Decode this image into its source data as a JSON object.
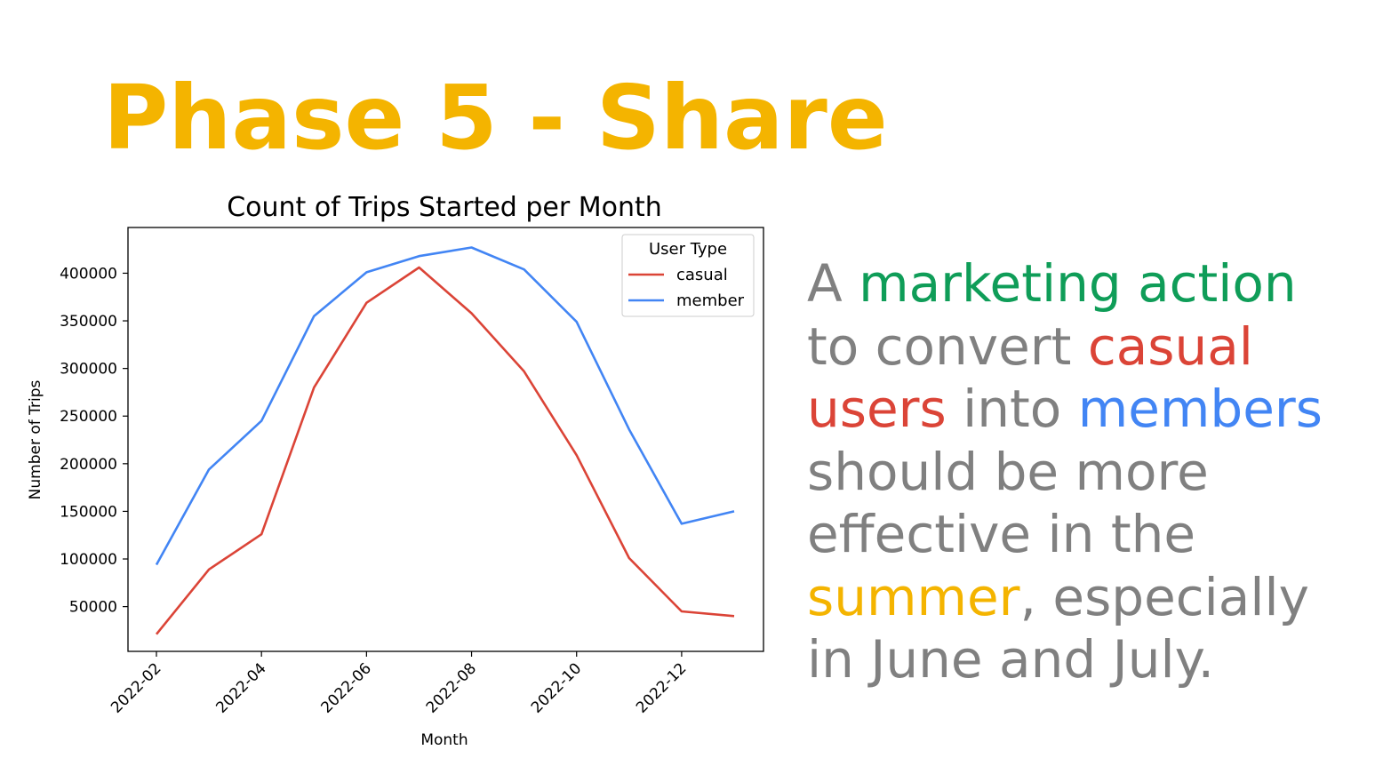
{
  "slide": {
    "title": "Phase 5 - Share"
  },
  "colors": {
    "title": "#f4b400",
    "body_text": "#808080",
    "green": "#0f9d58",
    "red": "#db4437",
    "blue": "#4285f4",
    "yellow": "#f4b400"
  },
  "chart_data": {
    "type": "line",
    "title": "Count of Trips Started per Month",
    "xlabel": "Month",
    "ylabel": "Number of Trips",
    "x": [
      "2022-02",
      "2022-03",
      "2022-04",
      "2022-05",
      "2022-06",
      "2022-07",
      "2022-08",
      "2022-09",
      "2022-10",
      "2022-11",
      "2022-12",
      "2023-01"
    ],
    "x_tick_labels": [
      "2022-02",
      "2022-04",
      "2022-06",
      "2022-08",
      "2022-10",
      "2022-12"
    ],
    "y_ticks": [
      50000,
      100000,
      150000,
      200000,
      250000,
      300000,
      350000,
      400000
    ],
    "y_tick_labels": [
      "50000",
      "100000",
      "150000",
      "200000",
      "250000",
      "300000",
      "350000",
      "400000"
    ],
    "ylim": [
      3000,
      448000
    ],
    "legend": {
      "title": "User Type",
      "location": "top-right"
    },
    "series": [
      {
        "name": "casual",
        "color": "#db4437",
        "values": [
          21000,
          89000,
          126000,
          280000,
          369000,
          406000,
          358000,
          297000,
          209000,
          101000,
          45000,
          40000
        ]
      },
      {
        "name": "member",
        "color": "#4285f4",
        "values": [
          94000,
          194000,
          245000,
          355000,
          401000,
          418000,
          427000,
          404000,
          349000,
          236000,
          137000,
          150000
        ]
      }
    ],
    "grid": false
  },
  "callout": {
    "lines": [
      [
        {
          "text": "A ",
          "color": "#808080"
        },
        {
          "text": "marketing action",
          "color": "#0f9d58"
        }
      ],
      [
        {
          "text": "to convert ",
          "color": "#808080"
        },
        {
          "text": "casual",
          "color": "#db4437"
        }
      ],
      [
        {
          "text": "users",
          "color": "#db4437"
        },
        {
          "text": " into ",
          "color": "#808080"
        },
        {
          "text": "members",
          "color": "#4285f4"
        }
      ],
      [
        {
          "text": "should be more",
          "color": "#808080"
        }
      ],
      [
        {
          "text": "effective in the",
          "color": "#808080"
        }
      ],
      [
        {
          "text": "summer",
          "color": "#f4b400"
        },
        {
          "text": ", especially",
          "color": "#808080"
        }
      ],
      [
        {
          "text": "in June and July.",
          "color": "#808080"
        }
      ]
    ]
  }
}
